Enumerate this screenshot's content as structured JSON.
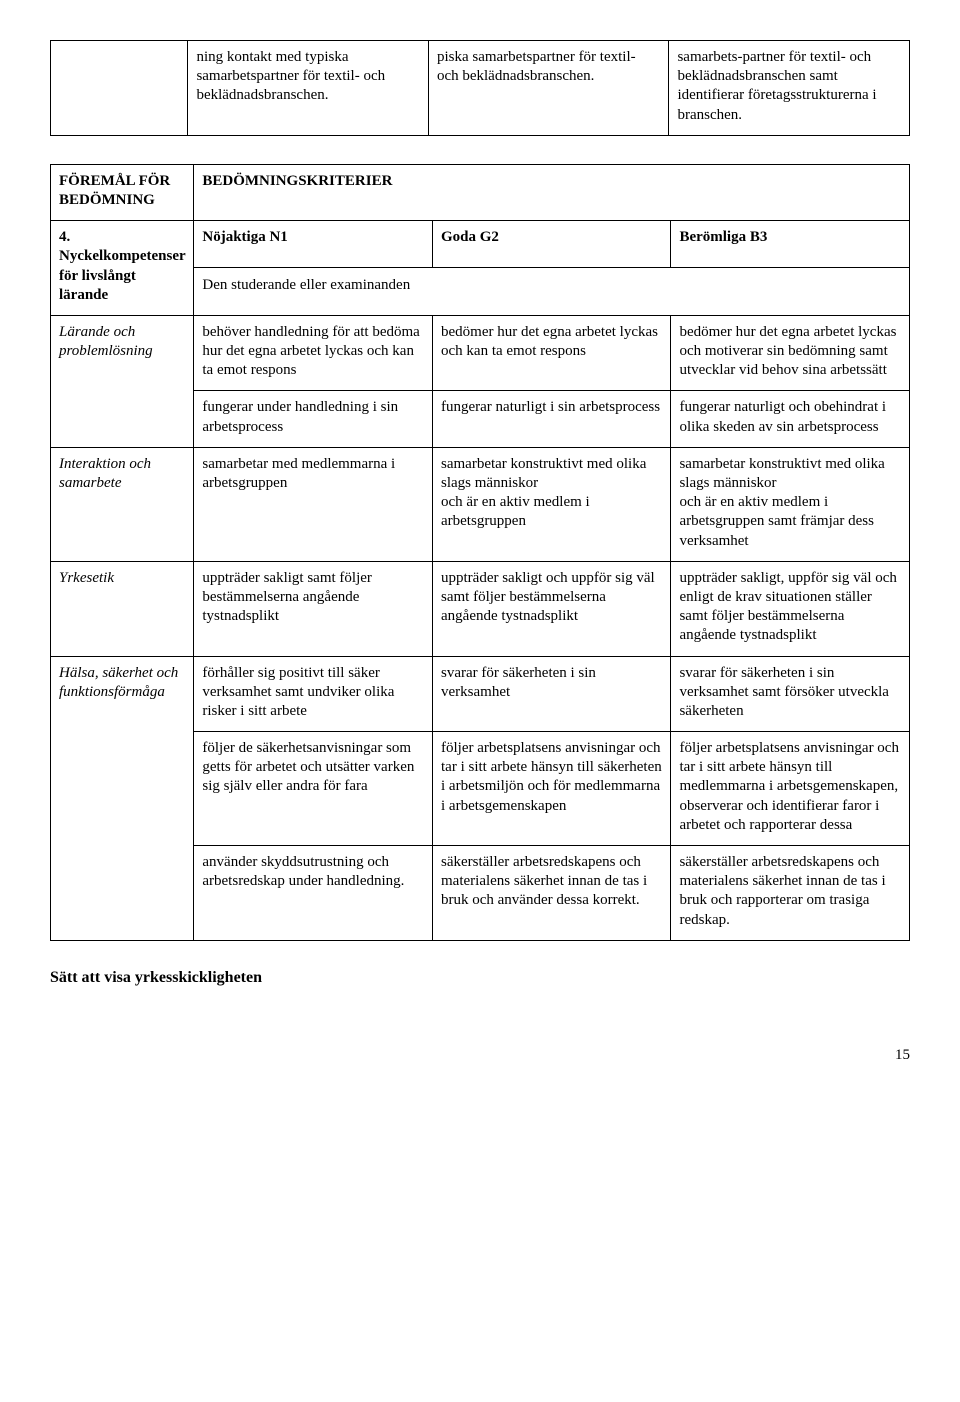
{
  "table1": {
    "r1c1": "",
    "r1c2": "ning kontakt med typiska samarbetspartner för textil- och beklädnadsbranschen.",
    "r1c3": "piska samarbetspartner för textil- och beklädnadsbranschen.",
    "r1c4": "samarbets-partner för textil- och beklädnadsbranschen samt identifierar företagsstrukturerna i branschen."
  },
  "table2": {
    "r1c1": "FÖREMÅL FÖR BEDÖMNING",
    "r1c2": "BEDÖMNINGSKRITERIER",
    "r2c1": "4. Nyckelkompetenser för livslångt lärande",
    "r2c2a": "Nöjaktiga N1",
    "r2c2b": "Den studerande eller examinanden",
    "r2c3": "Goda G2",
    "r2c4": "Berömliga B3",
    "r3c1": "Lärande och problemlösning",
    "r3c2": "behöver handledning för att bedöma hur det egna arbetet lyckas och kan ta emot respons",
    "r3c3": "bedömer hur det egna arbetet lyckas och kan ta emot respons",
    "r3c4": "bedömer hur det egna arbetet lyckas och motiverar sin bedömning samt utvecklar vid behov sina arbetssätt",
    "r4c2": "fungerar under handledning i sin arbetsprocess",
    "r4c3": "fungerar naturligt i sin arbetsprocess",
    "r4c4": "fungerar naturligt och obehindrat i olika skeden av sin arbetsprocess",
    "r5c1": "Interaktion och samarbete",
    "r5c2": "samarbetar med medlemmarna i arbetsgruppen",
    "r5c3": "samarbetar konstruktivt med olika slags människor\noch är en aktiv medlem i arbetsgruppen",
    "r5c4": "samarbetar konstruktivt med olika slags människor\noch är en aktiv medlem i arbetsgruppen samt främjar dess verksamhet",
    "r6c1": "Yrkesetik",
    "r6c2": "uppträder sakligt samt följer bestämmelserna angående tystnadsplikt",
    "r6c3": "uppträder sakligt och uppför sig väl samt följer bestämmelserna angående tystnadsplikt",
    "r6c4": "uppträder sakligt, uppför sig väl och enligt de krav situationen ställer samt följer bestämmelserna angående tystnadsplikt",
    "r7c1": "Hälsa, säkerhet och funktionsförmåga",
    "r7c2": "förhåller sig positivt till säker verksamhet samt undviker olika risker i sitt arbete",
    "r7c3": "svarar för säkerheten i sin verksamhet",
    "r7c4": "svarar för säkerheten i sin verksamhet samt försöker utveckla säkerheten",
    "r8c2": "följer de säkerhetsanvisningar som getts för arbetet och utsätter varken sig själv eller andra för fara",
    "r8c3": "följer arbetsplatsens anvisningar och tar i sitt arbete hänsyn till säkerheten i arbetsmiljön och för medlemmarna i arbetsgemenskapen",
    "r8c4": "följer arbetsplatsens anvisningar och tar i sitt arbete hänsyn till medlemmarna i arbetsgemenskapen, observerar och identifierar faror i arbetet och rapporterar dessa",
    "r9c2": "använder skyddsutrustning och arbetsredskap under handledning.",
    "r9c3": "säkerställer arbetsredskapens och materialens säkerhet innan de tas i bruk och använder dessa korrekt.",
    "r9c4": "säkerställer arbetsredskapens och materialens säkerhet innan de tas i bruk och rapporterar om trasiga redskap."
  },
  "heading": "Sätt att visa yrkesskickligheten",
  "pageNum": "15"
}
